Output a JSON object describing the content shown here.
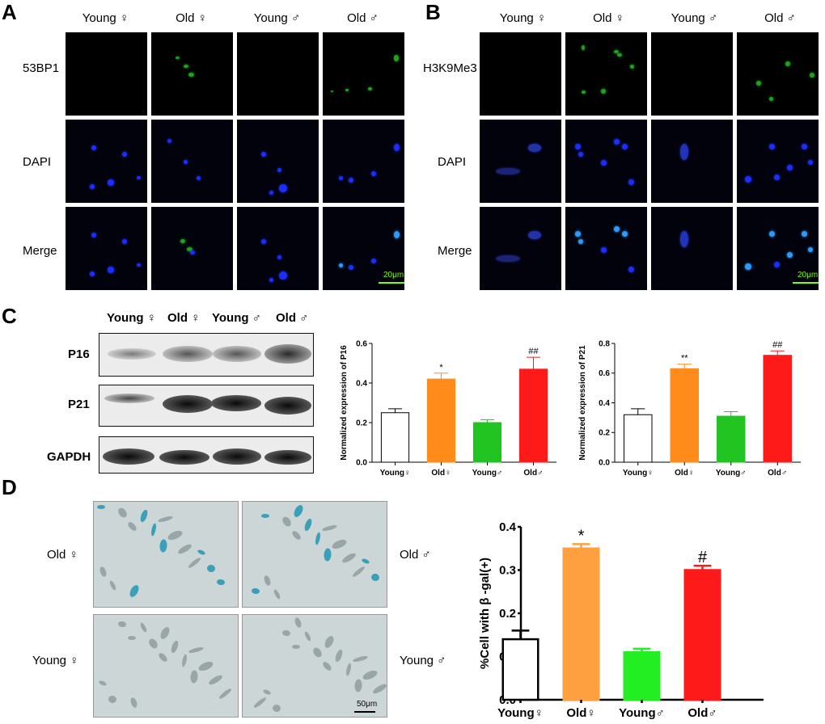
{
  "panels": {
    "A": "A",
    "B": "B",
    "C": "C",
    "D": "D"
  },
  "panelA": {
    "headers": [
      "Young ♀",
      "Old ♀",
      "Young ♂",
      "Old ♂"
    ],
    "rows": [
      "53BP1",
      "DAPI",
      "Merge"
    ],
    "scale": "20μm"
  },
  "panelB": {
    "headers": [
      "Young ♀",
      "Old ♀",
      "Young ♂",
      "Old ♂"
    ],
    "rows": [
      "H3K9Me3",
      "DAPI",
      "Merge"
    ],
    "scale": "20μm"
  },
  "panelC": {
    "headers": [
      "Young ♀",
      "Old ♀",
      "Young ♂",
      "Old ♂"
    ],
    "rows": [
      "P16",
      "P21",
      "GAPDH"
    ]
  },
  "panelD": {
    "labels": {
      "old_f": "Old ♀",
      "old_m": "Old ♂",
      "young_f": "Young ♀",
      "young_m": "Young ♂"
    },
    "scale": "50μm"
  },
  "colors": {
    "white": "#ffffff",
    "orange": "#ff8c1a",
    "green": "#22c422",
    "red": "#ff1a1a"
  },
  "chart_data": [
    {
      "type": "bar",
      "categories": [
        "Young♀",
        "Old♀",
        "Young♂",
        "Old♂"
      ],
      "values": [
        0.25,
        0.42,
        0.2,
        0.47
      ],
      "errors": [
        0.02,
        0.03,
        0.015,
        0.06
      ],
      "annotations": [
        "",
        "*",
        "",
        "##"
      ],
      "ylabel": "Normalized expression of P16",
      "xlabel": "",
      "ylim": [
        0,
        0.6
      ],
      "yticks": [
        "0.0",
        "0.2",
        "0.4",
        "0.6"
      ],
      "colors": [
        "#ffffff",
        "#ff8c1a",
        "#22c422",
        "#ff1a1a"
      ]
    },
    {
      "type": "bar",
      "categories": [
        "Young♀",
        "Old♀",
        "Young♂",
        "Old♂"
      ],
      "values": [
        0.32,
        0.63,
        0.31,
        0.72
      ],
      "errors": [
        0.04,
        0.03,
        0.03,
        0.03
      ],
      "annotations": [
        "",
        "**",
        "",
        "##"
      ],
      "ylabel": "Normalized expression of P21",
      "xlabel": "",
      "ylim": [
        0,
        0.8
      ],
      "yticks": [
        "0.0",
        "0.2",
        "0.4",
        "0.6",
        "0.8"
      ],
      "colors": [
        "#ffffff",
        "#ff8c1a",
        "#22c422",
        "#ff1a1a"
      ]
    },
    {
      "type": "bar",
      "categories": [
        "Young♀",
        "Old♀",
        "Young♂",
        "Old♂"
      ],
      "values": [
        0.14,
        0.35,
        0.11,
        0.3
      ],
      "errors": [
        0.02,
        0.01,
        0.008,
        0.01
      ],
      "annotations": [
        "",
        "*",
        "",
        "#"
      ],
      "ylabel": "%Cell with β -gal(+)",
      "xlabel": "",
      "ylim": [
        0,
        0.4
      ],
      "yticks": [
        "0.0",
        "0.1",
        "0.2",
        "0.3",
        "0.4"
      ],
      "colors": [
        "#ffffff",
        "#ffa040",
        "#22ee22",
        "#ff1a1a"
      ]
    }
  ]
}
